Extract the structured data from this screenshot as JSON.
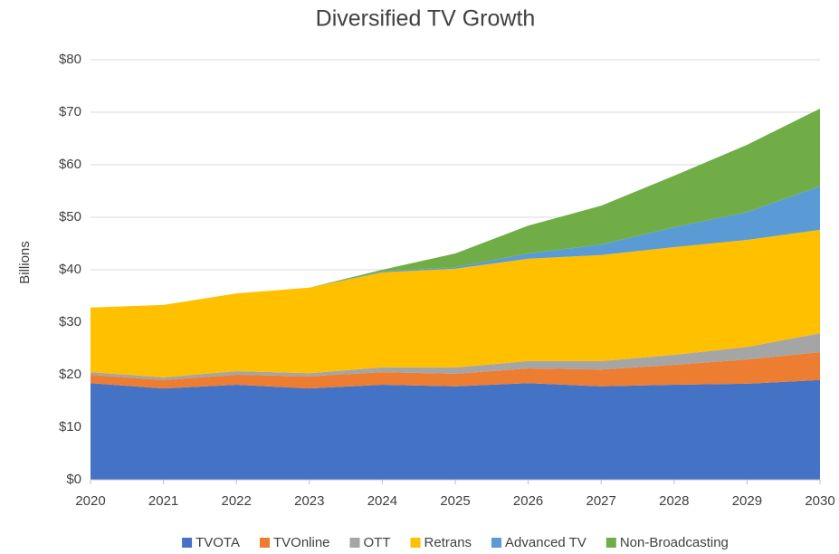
{
  "chart_data": {
    "type": "stacked_area",
    "title": "Diversified TV Growth",
    "y_label": "Billions",
    "x": [
      2020,
      2021,
      2022,
      2023,
      2024,
      2025,
      2026,
      2027,
      2028,
      2029,
      2030
    ],
    "xlim": [
      2020,
      2030
    ],
    "xticks": [
      2020,
      2021,
      2022,
      2023,
      2024,
      2025,
      2026,
      2027,
      2028,
      2029,
      2030
    ],
    "ylim": [
      0,
      80
    ],
    "yticks": [
      {
        "value": 0,
        "label": "$0"
      },
      {
        "value": 10,
        "label": "$10"
      },
      {
        "value": 20,
        "label": "$20"
      },
      {
        "value": 30,
        "label": "$30"
      },
      {
        "value": 40,
        "label": "$40"
      },
      {
        "value": 50,
        "label": "$50"
      },
      {
        "value": 60,
        "label": "$60"
      },
      {
        "value": 70,
        "label": "$70"
      },
      {
        "value": 80,
        "label": "$80"
      }
    ],
    "grid": true,
    "legend": "bottom",
    "series": [
      {
        "name": "TVOTA",
        "color": "#4472c4",
        "values": [
          18.4,
          17.4,
          18.1,
          17.4,
          18.1,
          17.8,
          18.4,
          17.8,
          18.1,
          18.3,
          19.0
        ]
      },
      {
        "name": "TVOnline",
        "color": "#ed7d31",
        "values": [
          1.6,
          1.6,
          1.9,
          2.3,
          2.4,
          2.4,
          2.8,
          3.2,
          3.8,
          4.6,
          5.3
        ]
      },
      {
        "name": "OTT",
        "color": "#a5a5a5",
        "values": [
          0.5,
          0.5,
          0.7,
          0.6,
          0.9,
          1.2,
          1.4,
          1.6,
          1.9,
          2.4,
          3.6
        ]
      },
      {
        "name": "Retrans",
        "color": "#ffc000",
        "values": [
          12.3,
          13.8,
          14.8,
          16.3,
          18.1,
          18.8,
          19.5,
          20.2,
          20.5,
          20.4,
          19.7
        ]
      },
      {
        "name": "Advanced TV",
        "color": "#5b9bd5",
        "values": [
          0,
          0,
          0,
          0,
          0.2,
          0.3,
          1.0,
          2.0,
          3.8,
          5.3,
          8.3
        ]
      },
      {
        "name": "Non-Broadcasting",
        "color": "#70ad47",
        "values": [
          0,
          0,
          0,
          0,
          0.3,
          2.6,
          5.3,
          7.4,
          9.8,
          12.8,
          14.8
        ]
      }
    ]
  }
}
